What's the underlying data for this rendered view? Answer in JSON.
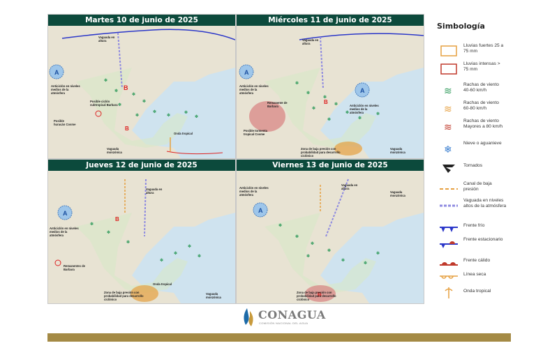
{
  "panels": [
    {
      "title": "Martes 10 de junio de 2025",
      "notes": {
        "vaguada": "Vaguada en altura",
        "anticiclon": "Anticiclón en niveles medios de la atmósfera",
        "posible": "Posible ciclón subtropical Barbara",
        "posible2": "Posible huracán Cosme",
        "onda": "Onda tropical",
        "vaguada_mon": "Vaguada monzónica"
      }
    },
    {
      "title": "Miércoles 11 de junio de 2025",
      "notes": {
        "vaguada": "Vaguada en altura",
        "anticiclon": "Anticiclón en niveles medios de la atmósfera",
        "remanente": "Remanente de Barbara",
        "tormenta": "Posible tormenta tropical Cosme",
        "anticiclon2": "Anticiclón en niveles medios de la atmósfera",
        "zona": "Zona de baja presión con probabilidad para desarrollo ciclónico",
        "vaguada_mon": "Vaguada monzónica"
      }
    },
    {
      "title": "Jueves 12 de junio de 2025",
      "notes": {
        "vaguada": "Vaguada en altura",
        "anticiclon": "Anticiclón en niveles medios de la atmósfera",
        "remanente": "Remanentes de Barbara",
        "onda": "Onda tropical",
        "zona": "Zona de baja presión con probabilidad para desarrollo ciclónico",
        "vaguada_mon": "Vaguada monzónica"
      }
    },
    {
      "title": "Viernes 13 de junio de 2025",
      "notes": {
        "vaguada": "Vaguada en altura",
        "anticiclon": "Anticiclón en niveles medios de la atmósfera",
        "zona": "Zona de baja presión con probabilidad para desarrollo ciclónico",
        "vaguada_mon": "Vaguada monzónica"
      }
    }
  ],
  "legend": {
    "title": "Simbología",
    "items": [
      {
        "icon": "heavy-rain-box-icon",
        "label": "Lluvias fuertes 25 a 75 mm"
      },
      {
        "icon": "intense-rain-box-icon",
        "label": "Lluvias intensas > 75 mm"
      },
      {
        "icon": "wind-gust-green-icon",
        "label": "Rachas de viento 40-60 km/h"
      },
      {
        "icon": "wind-gust-orange-icon",
        "label": "Rachas de viento 60-80 km/h"
      },
      {
        "icon": "wind-gust-red-icon",
        "label": "Rachas de viento Mayores a 80 km/h"
      },
      {
        "icon": "snowflake-icon",
        "label": "Nieve o aguanieve"
      },
      {
        "icon": "tornado-icon",
        "label": "Tornados"
      },
      {
        "icon": "low-pressure-channel-icon",
        "label": "Canal de baja presión"
      },
      {
        "icon": "upper-trough-icon",
        "label": "Vaguada en niveles altos de la atmósfera"
      },
      {
        "icon": "cold-front-icon",
        "label": "Frente frío"
      },
      {
        "icon": "stationary-front-icon",
        "label": "Frente estacionario"
      },
      {
        "icon": "warm-front-icon",
        "label": "Frente cálido"
      },
      {
        "icon": "dry-line-icon",
        "label": "Línea seca"
      },
      {
        "icon": "tropical-wave-icon",
        "label": "Onda tropical"
      }
    ]
  },
  "logo": {
    "name": "CONAGUA",
    "subtitle": "COMISIÓN NACIONAL DEL AGUA"
  },
  "colors": {
    "header": "#0c4a3c",
    "wind_green": "#2e9a5a",
    "orange": "#e6a040",
    "red": "#c0392b",
    "blue": "#2b37c9",
    "gold": "#a48a45"
  }
}
